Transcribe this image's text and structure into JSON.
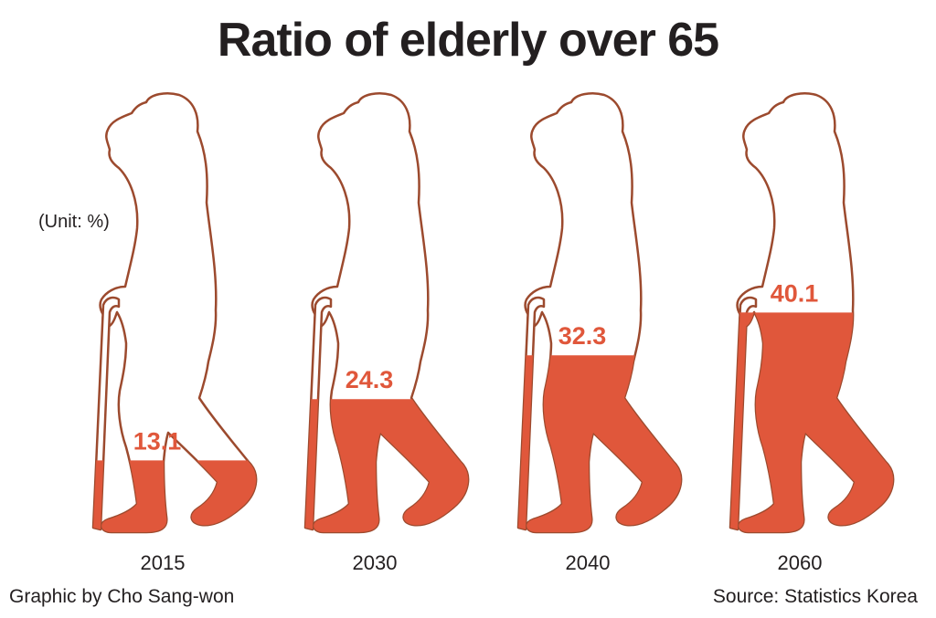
{
  "title": "Ratio of elderly over 65",
  "unit": "(Unit: %)",
  "credit": "Graphic by Cho Sang-won",
  "source": "Source: Statistics Korea",
  "colors": {
    "fill": "#e0573b",
    "outline": "#9c4a2e",
    "text": "#231f20"
  },
  "chart_data": {
    "type": "bar",
    "categories": [
      "2015",
      "2030",
      "2040",
      "2060"
    ],
    "values": [
      13.1,
      24.3,
      32.3,
      40.1
    ],
    "title": "Ratio of elderly over 65",
    "ylabel": "(Unit: %)",
    "value_labels": [
      "13.1",
      "24.3",
      "32.3",
      "40.1"
    ]
  }
}
